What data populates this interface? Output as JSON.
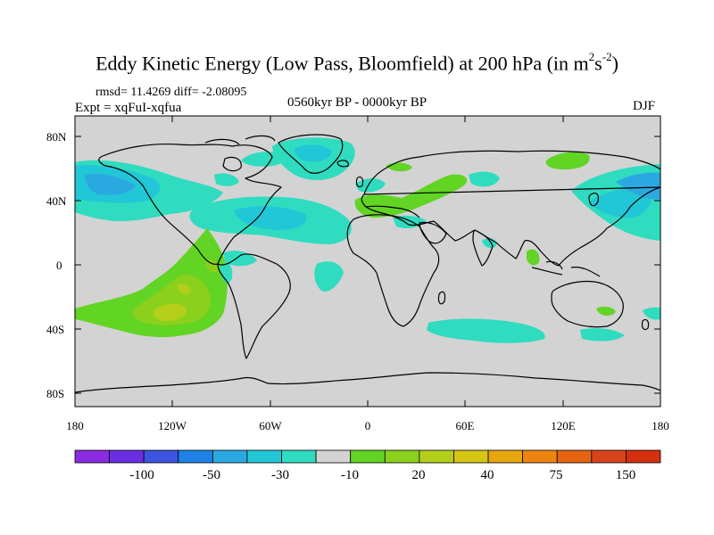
{
  "title": {
    "main": "Eddy Kinetic Energy (Low Pass, Bloomfield) at 200 hPa (in m",
    "sup1": "2",
    "mid": "s",
    "sup2": "-2",
    "end": ")"
  },
  "stats_text": "rmsd= 11.4269 diff= -2.08095",
  "experiment_text": "Expt = xqFuI-xqfua",
  "period_text": "0560kyr BP - 0000kyr BP",
  "season_text": "DJF",
  "map": {
    "background_color": "#d3d3d3",
    "y_axis_labels": [
      "80N",
      "40N",
      "0",
      "40S",
      "80S"
    ],
    "x_axis_labels": [
      "180",
      "120W",
      "60W",
      "0",
      "60E",
      "120E",
      "180"
    ]
  },
  "colorbar": {
    "colors": [
      "#8a2be2",
      "#6a2ee0",
      "#3d54e0",
      "#1e82e6",
      "#2aa9e0",
      "#22c7d7",
      "#2fdcc0",
      "#d3d3d3",
      "#62d424",
      "#8bd01c",
      "#b4cf1a",
      "#d6c614",
      "#e8a60e",
      "#ee8410",
      "#e46410",
      "#d8441a",
      "#d4300e"
    ],
    "labels": [
      "-100",
      "-50",
      "-30",
      "-10",
      "20",
      "40",
      "75",
      "150"
    ]
  }
}
